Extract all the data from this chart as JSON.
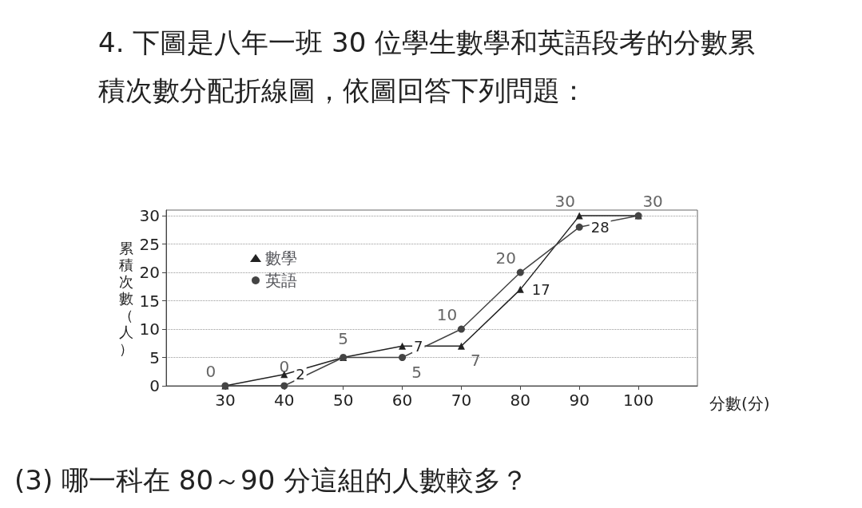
{
  "chart_data": {
    "type": "line",
    "title": "4. 下圖是八年一班 30 位學生數學和英語段考的分數累積次數分配折線圖，依圖回答下列問題：",
    "xlabel": "分數(分)",
    "ylabel": "累積次數（人）",
    "x": [
      30,
      40,
      50,
      60,
      70,
      80,
      90,
      100
    ],
    "series": [
      {
        "name": "數學",
        "color": "#222222",
        "marker": "triangle",
        "values": [
          0,
          2,
          5,
          7,
          7,
          17,
          30,
          30
        ],
        "value_labels": [
          null,
          "2",
          null,
          "7",
          null,
          "17",
          null,
          null
        ]
      },
      {
        "name": "英語",
        "color": "#444444",
        "marker": "circle",
        "values": [
          0,
          0,
          5,
          5,
          10,
          20,
          28,
          30
        ],
        "value_labels": [
          null,
          null,
          null,
          null,
          null,
          null,
          "28",
          null
        ]
      }
    ],
    "xlim": [
      20,
      110
    ],
    "xticks": [
      30,
      40,
      50,
      60,
      70,
      80,
      90,
      100
    ],
    "ylim": [
      0,
      31
    ],
    "yticks": [
      0,
      5,
      10,
      15,
      20,
      25,
      30
    ],
    "grid": "y",
    "legend": "top left",
    "annotations": [
      {
        "text": "0",
        "x": 30,
        "y": 0
      },
      {
        "text": "0",
        "x": 40,
        "y": 0
      },
      {
        "text": "5",
        "x": 50,
        "y": 5
      },
      {
        "text": "5",
        "x": 60,
        "y": 5
      },
      {
        "text": "7",
        "x": 70,
        "y": 7
      },
      {
        "text": "10",
        "x": 70,
        "y": 10
      },
      {
        "text": "20",
        "x": 80,
        "y": 20
      },
      {
        "text": "30",
        "x": 90,
        "y": 30
      },
      {
        "text": "30",
        "x": 100,
        "y": 30
      },
      "(3) 哪一科在 80～90 分這組的人數較多？"
    ]
  }
}
